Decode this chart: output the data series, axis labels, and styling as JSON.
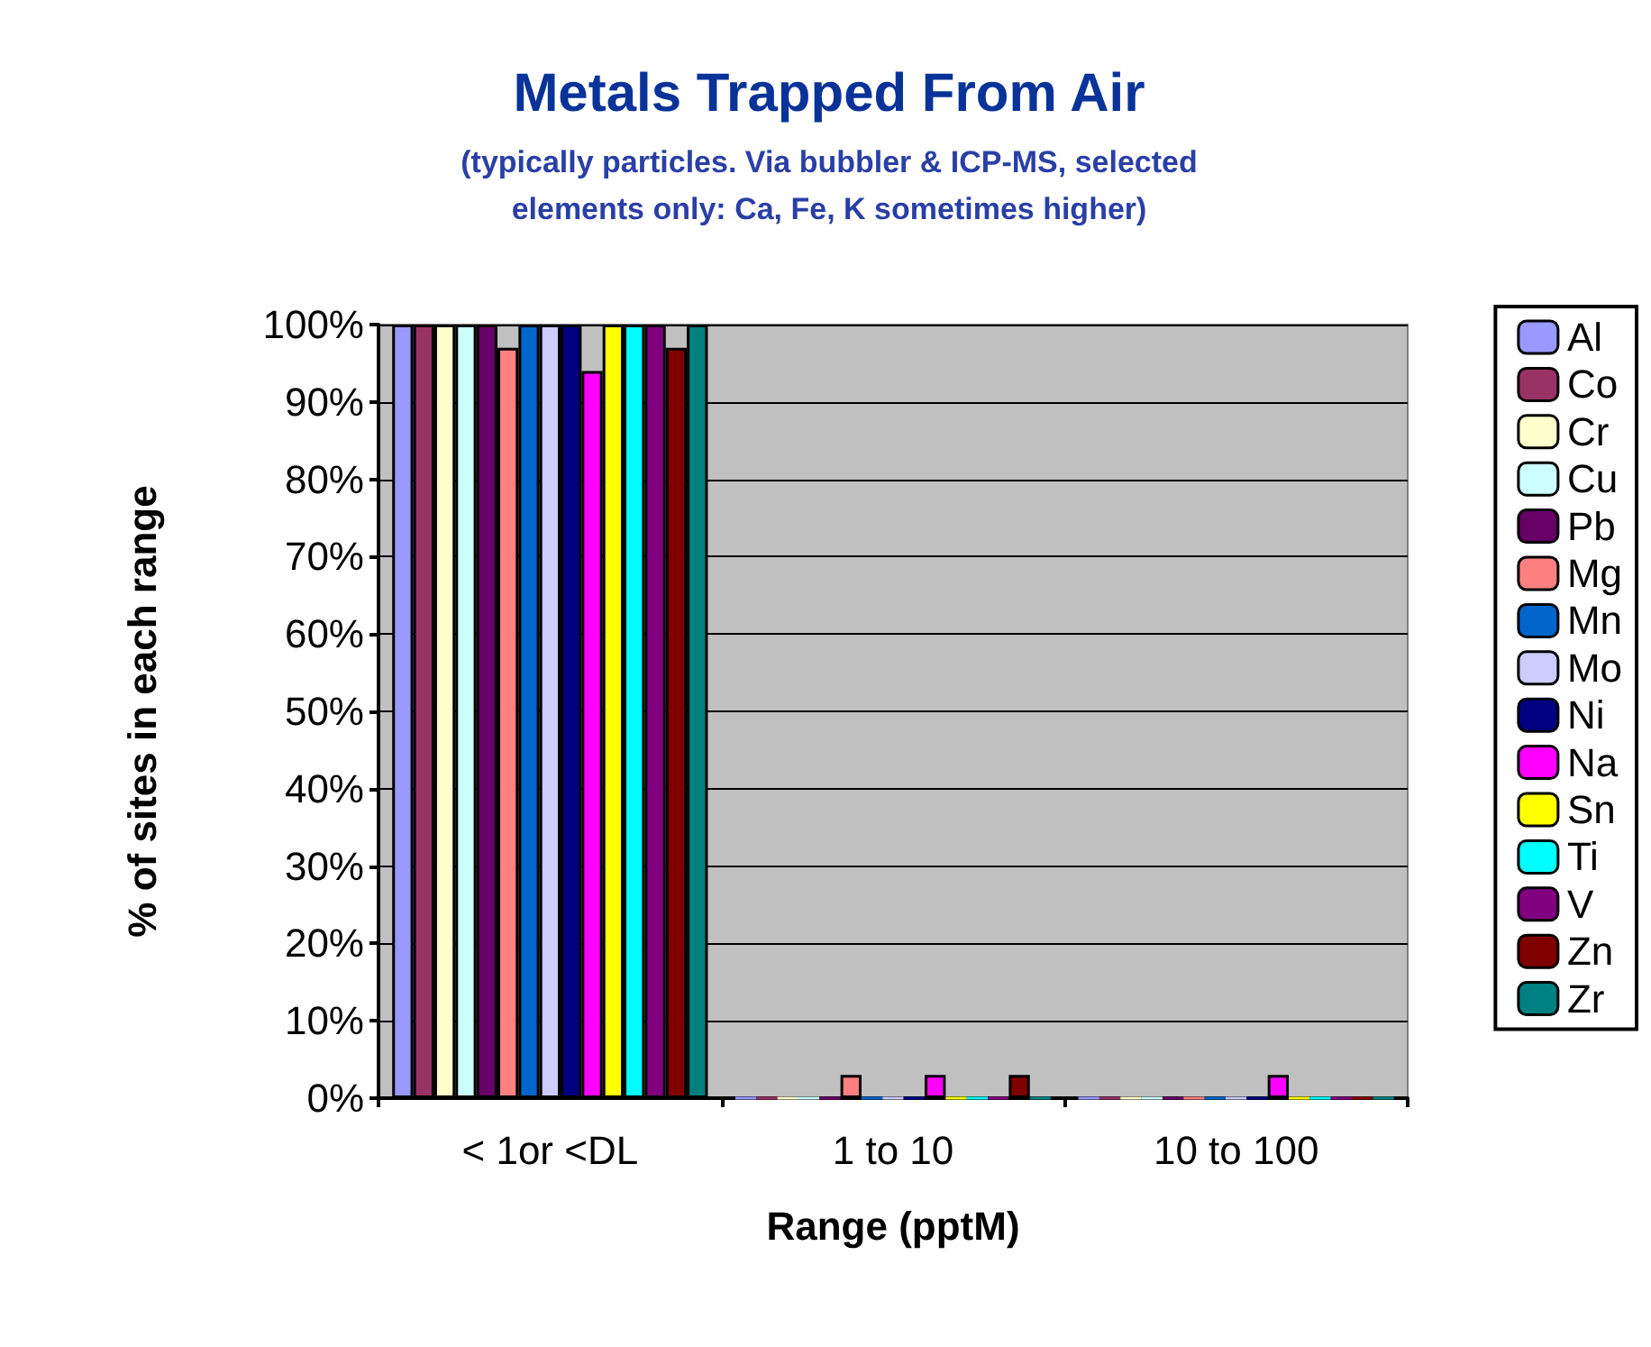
{
  "chart_data": {
    "type": "bar",
    "title": "Metals Trapped From Air",
    "subtitle": "(typically particles. Via bubbler & ICP-MS, selected\nelements only: Ca, Fe, K sometimes higher)",
    "xlabel": "Range (pptM)",
    "ylabel": "% of sites in each range",
    "categories": [
      "< 1or <DL",
      "1 to 10",
      "10 to 100"
    ],
    "series": [
      {
        "name": "Al",
        "color": "#9999ff",
        "values": [
          100,
          0,
          0
        ]
      },
      {
        "name": "Co",
        "color": "#993366",
        "values": [
          100,
          0,
          0
        ]
      },
      {
        "name": "Cr",
        "color": "#ffffcc",
        "values": [
          100,
          0,
          0
        ]
      },
      {
        "name": "Cu",
        "color": "#ccffff",
        "values": [
          100,
          0,
          0
        ]
      },
      {
        "name": "Pb",
        "color": "#660066",
        "values": [
          100,
          0,
          0
        ]
      },
      {
        "name": "Mg",
        "color": "#ff8080",
        "values": [
          97,
          3,
          0
        ]
      },
      {
        "name": "Mn",
        "color": "#0066cc",
        "values": [
          100,
          0,
          0
        ]
      },
      {
        "name": "Mo",
        "color": "#ccccff",
        "values": [
          100,
          0,
          0
        ]
      },
      {
        "name": "Ni",
        "color": "#000080",
        "values": [
          100,
          0,
          0
        ]
      },
      {
        "name": "Na",
        "color": "#ff00ff",
        "values": [
          94,
          3,
          3
        ]
      },
      {
        "name": "Sn",
        "color": "#ffff00",
        "values": [
          100,
          0,
          0
        ]
      },
      {
        "name": "Ti",
        "color": "#00ffff",
        "values": [
          100,
          0,
          0
        ]
      },
      {
        "name": "V",
        "color": "#800080",
        "values": [
          100,
          0,
          0
        ]
      },
      {
        "name": "Zn",
        "color": "#800000",
        "values": [
          97,
          3,
          0
        ]
      },
      {
        "name": "Zr",
        "color": "#008080",
        "values": [
          100,
          0,
          0
        ]
      }
    ],
    "ylim": [
      0,
      100
    ],
    "yticks": [
      {
        "value": 0,
        "label": "0%"
      },
      {
        "value": 10,
        "label": "10%"
      },
      {
        "value": 20,
        "label": "20%"
      },
      {
        "value": 30,
        "label": "30%"
      },
      {
        "value": 40,
        "label": "40%"
      },
      {
        "value": 50,
        "label": "50%"
      },
      {
        "value": 60,
        "label": "60%"
      },
      {
        "value": 70,
        "label": "70%"
      },
      {
        "value": 80,
        "label": "80%"
      },
      {
        "value": 90,
        "label": "90%"
      },
      {
        "value": 100,
        "label": "100%"
      }
    ],
    "grid": "y",
    "legend": "right"
  }
}
